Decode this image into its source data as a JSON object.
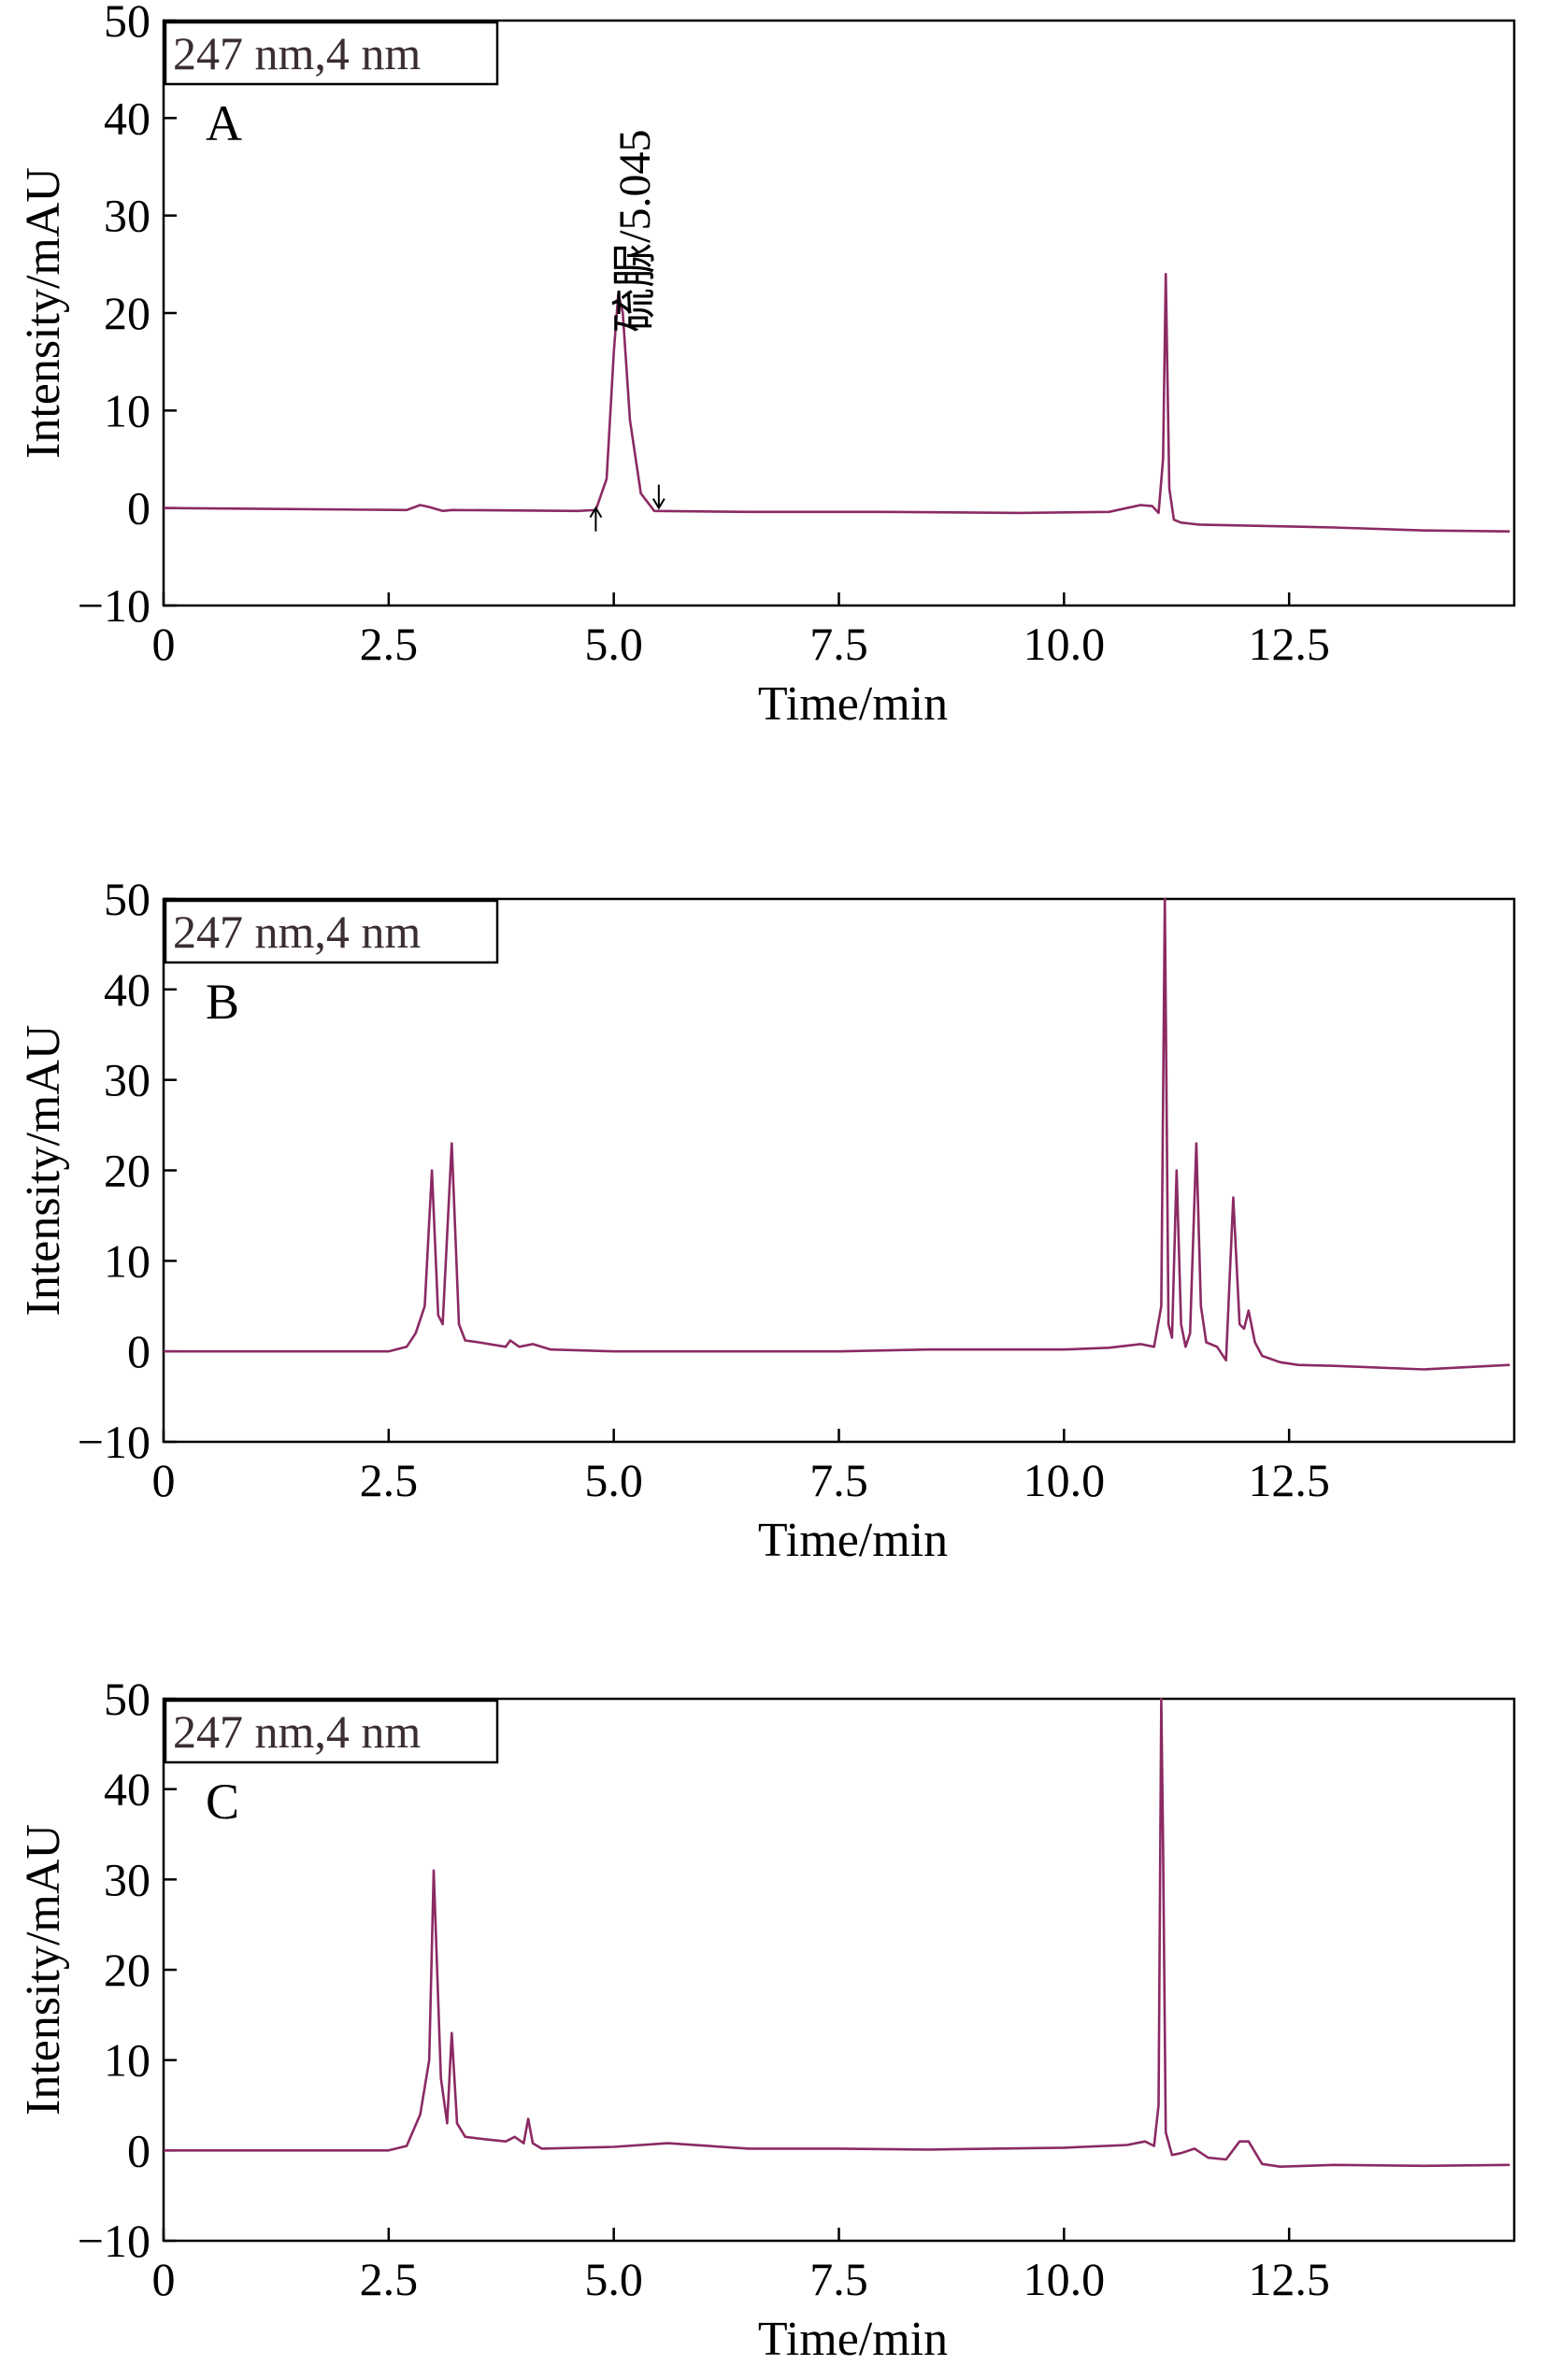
{
  "chart_data": [
    {
      "type": "line",
      "panel": "A",
      "box_label": "247 nm,4 nm",
      "xlabel": "Time/min",
      "ylabel": "Intensity/mAU",
      "xlim": [
        0,
        15
      ],
      "ylim": [
        -10,
        50
      ],
      "xticks": [
        0,
        2.5,
        5.0,
        7.5,
        10.0,
        12.5
      ],
      "xtick_labels": [
        "0",
        "2.5",
        "5.0",
        "7.5",
        "10.0",
        "12.5"
      ],
      "yticks": [
        -10,
        0,
        10,
        20,
        30,
        40,
        50
      ],
      "ytick_labels": [
        "−10",
        "0",
        "10",
        "20",
        "30",
        "40",
        "50"
      ],
      "peak_annotation": "硫脲/5.045",
      "line_color": "#8b2a63",
      "series": [
        {
          "x": [
            0,
            2.7,
            2.85,
            2.95,
            3.1,
            3.2,
            4.6,
            4.8,
            4.92,
            5.0,
            5.05,
            5.1,
            5.18,
            5.3,
            5.45,
            6.5,
            8.0,
            9.5,
            10.5,
            10.85,
            10.98,
            11.05,
            11.1,
            11.13,
            11.17,
            11.22,
            11.3,
            11.5,
            12.0,
            13.0,
            14.0,
            14.95
          ],
          "y": [
            0,
            -0.2,
            0.3,
            0.1,
            -0.3,
            -0.2,
            -0.3,
            -0.2,
            3,
            16,
            22,
            20,
            9,
            1.5,
            -0.3,
            -0.4,
            -0.4,
            -0.5,
            -0.4,
            0.3,
            0.2,
            -0.5,
            5,
            24,
            2,
            -1.2,
            -1.5,
            -1.7,
            -1.8,
            -2.0,
            -2.3,
            -2.4
          ]
        }
      ]
    },
    {
      "type": "line",
      "panel": "B",
      "box_label": "247 nm,4 nm",
      "xlabel": "Time/min",
      "ylabel": "Intensity/mAU",
      "xlim": [
        0,
        15
      ],
      "ylim": [
        -10,
        50
      ],
      "xticks": [
        0,
        2.5,
        5.0,
        7.5,
        10.0,
        12.5
      ],
      "xtick_labels": [
        "0",
        "2.5",
        "5.0",
        "7.5",
        "10.0",
        "12.5"
      ],
      "yticks": [
        -10,
        0,
        10,
        20,
        30,
        40,
        50
      ],
      "ytick_labels": [
        "−10",
        "0",
        "10",
        "20",
        "30",
        "40",
        "50"
      ],
      "line_color": "#8b2a63",
      "series": [
        {
          "x": [
            0,
            2.5,
            2.7,
            2.8,
            2.9,
            2.98,
            3.05,
            3.1,
            3.2,
            3.28,
            3.35,
            3.5,
            3.8,
            3.85,
            3.95,
            4.1,
            4.3,
            5.0,
            7.5,
            8.5,
            10.0,
            10.5,
            10.85,
            11.0,
            11.08,
            11.12,
            11.16,
            11.2,
            11.25,
            11.3,
            11.35,
            11.4,
            11.47,
            11.52,
            11.58,
            11.7,
            11.8,
            11.88,
            11.95,
            12.0,
            12.05,
            12.12,
            12.2,
            12.4,
            12.6,
            13.0,
            14.0,
            14.95
          ],
          "y": [
            0,
            0,
            0.5,
            2,
            5,
            20,
            4,
            3,
            23,
            3,
            1.2,
            1,
            0.5,
            1.2,
            0.5,
            0.8,
            0.2,
            0,
            0,
            0.2,
            0.2,
            0.4,
            0.8,
            0.5,
            5,
            50,
            3,
            1.5,
            20,
            3,
            0.5,
            2,
            23,
            5,
            1,
            0.5,
            -1,
            17,
            3,
            2.5,
            4.5,
            1,
            -0.5,
            -1.2,
            -1.5,
            -1.6,
            -2,
            -1.5
          ]
        }
      ]
    },
    {
      "type": "line",
      "panel": "C",
      "box_label": "247 nm,4 nm",
      "xlabel": "Time/min",
      "ylabel": "Intensity/mAU",
      "xlim": [
        0,
        15
      ],
      "ylim": [
        -10,
        50
      ],
      "xticks": [
        0,
        2.5,
        5.0,
        7.5,
        10.0,
        12.5
      ],
      "xtick_labels": [
        "0",
        "2.5",
        "5.0",
        "7.5",
        "10.0",
        "12.5"
      ],
      "yticks": [
        -10,
        0,
        10,
        20,
        30,
        40,
        50
      ],
      "ytick_labels": [
        "−10",
        "0",
        "10",
        "20",
        "30",
        "40",
        "50"
      ],
      "line_color": "#8b2a63",
      "series": [
        {
          "x": [
            0,
            2.5,
            2.7,
            2.85,
            2.95,
            3.0,
            3.08,
            3.15,
            3.2,
            3.26,
            3.35,
            3.6,
            3.8,
            3.9,
            4.0,
            4.05,
            4.1,
            4.2,
            5.0,
            5.6,
            6.5,
            7.5,
            8.5,
            10.0,
            10.7,
            10.9,
            11.0,
            11.05,
            11.08,
            11.1,
            11.13,
            11.2,
            11.3,
            11.45,
            11.6,
            11.8,
            11.95,
            12.05,
            12.2,
            12.4,
            13.0,
            14.0,
            14.95
          ],
          "y": [
            0,
            0,
            0.5,
            4,
            10,
            31,
            8,
            3,
            13,
            3,
            1.5,
            1.2,
            1,
            1.5,
            0.8,
            3.5,
            0.8,
            0.2,
            0.4,
            0.8,
            0.2,
            0.2,
            0.1,
            0.3,
            0.6,
            1,
            0.5,
            5,
            50,
            34,
            2,
            -0.5,
            -0.3,
            0.2,
            -0.8,
            -1,
            1,
            1,
            -1.5,
            -1.8,
            -1.6,
            -1.7,
            -1.6
          ]
        }
      ]
    }
  ]
}
